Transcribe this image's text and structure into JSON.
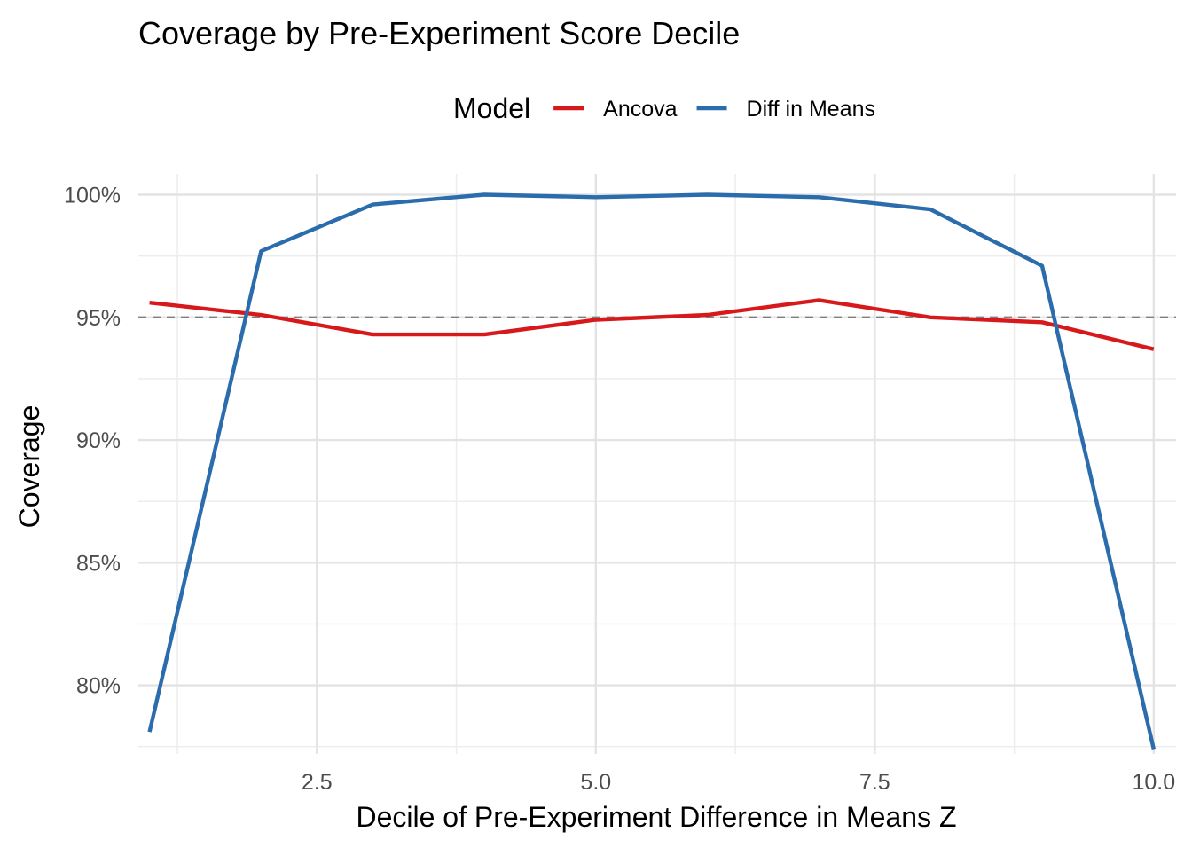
{
  "chart_data": {
    "type": "line",
    "title": "Coverage by Pre-Experiment Score Decile",
    "xlabel": "Decile of Pre-Experiment Difference in Means Z",
    "ylabel": "Coverage",
    "xlim": [
      0.9,
      10.2
    ],
    "ylim": [
      0.772,
      1.0085
    ],
    "x_ticks": [
      2.5,
      5.0,
      7.5,
      10.0
    ],
    "x_tick_labels": [
      "2.5",
      "5.0",
      "7.5",
      "10.0"
    ],
    "y_ticks": [
      0.8,
      0.85,
      0.9,
      0.95,
      1.0
    ],
    "y_tick_labels": [
      "80%",
      "85%",
      "90%",
      "95%",
      "100%"
    ],
    "grid": true,
    "reference_line": {
      "y": 0.95,
      "style": "dashed",
      "color": "#7f7f7f"
    },
    "legend": {
      "title": "Model",
      "position": "top",
      "items": [
        {
          "label": "Ancova",
          "color": "#d7191c"
        },
        {
          "label": "Diff in Means",
          "color": "#2b6cad"
        }
      ]
    },
    "x": [
      1,
      2,
      3,
      4,
      5,
      6,
      7,
      8,
      9,
      10
    ],
    "series": [
      {
        "name": "Ancova",
        "color": "#d7191c",
        "values": [
          0.956,
          0.951,
          0.943,
          0.943,
          0.949,
          0.951,
          0.957,
          0.95,
          0.948,
          0.937
        ]
      },
      {
        "name": "Diff in Means",
        "color": "#2b6cad",
        "values": [
          0.781,
          0.977,
          0.996,
          1.0,
          0.999,
          1.0,
          0.999,
          0.994,
          0.971,
          0.774
        ]
      }
    ]
  }
}
